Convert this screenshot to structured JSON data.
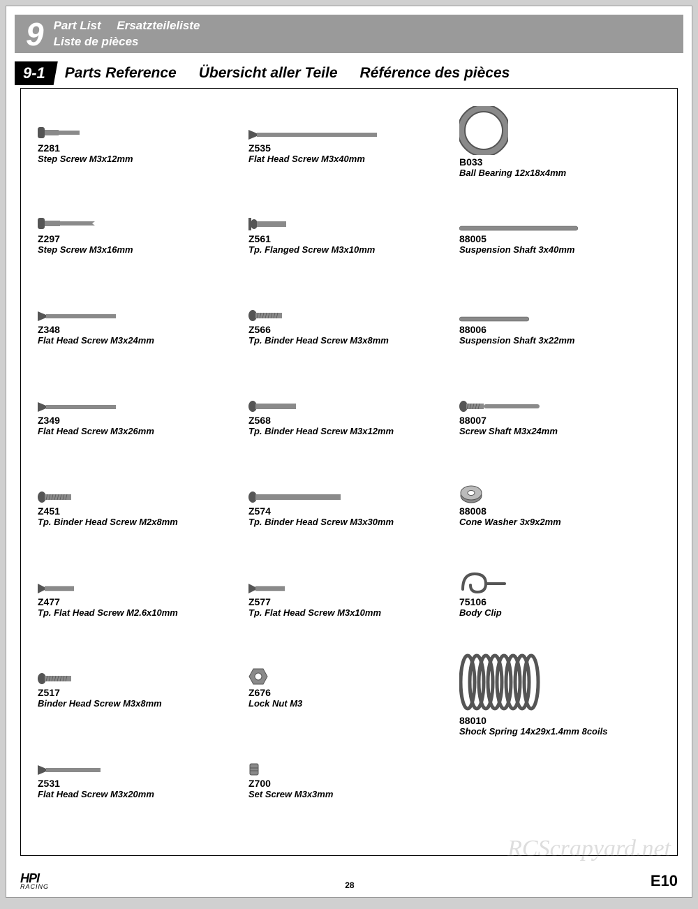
{
  "header": {
    "section_number": "9",
    "title_en": "Part List",
    "title_de": "Ersatzteileliste",
    "title_fr": "Liste de pièces"
  },
  "subheader": {
    "section_number": "9-1",
    "title_en": "Parts  Reference",
    "title_de": "Übersicht  aller  Teile",
    "title_fr": "Référence  des  pièces"
  },
  "columns": [
    [
      {
        "code": "Z281",
        "desc": "Step Screw M3x12mm",
        "icon": "step-screw-short"
      },
      {
        "code": "Z297",
        "desc": "Step Screw M3x16mm",
        "icon": "step-screw-long"
      },
      {
        "code": "Z348",
        "desc": "Flat Head Screw M3x24mm",
        "icon": "flat-screw-long"
      },
      {
        "code": "Z349",
        "desc": "Flat Head Screw M3x26mm",
        "icon": "flat-screw-long"
      },
      {
        "code": "Z451",
        "desc": "Tp. Binder Head Screw M2x8mm",
        "icon": "binder-screw-short"
      },
      {
        "code": "Z477",
        "desc": "Tp. Flat Head Screw M2.6x10mm",
        "icon": "flat-screw-short"
      },
      {
        "code": "Z517",
        "desc": "Binder Head Screw M3x8mm",
        "icon": "binder-screw-short"
      },
      {
        "code": "Z531",
        "desc": "Flat Head Screw M3x20mm",
        "icon": "flat-screw-med"
      }
    ],
    [
      {
        "code": "Z535",
        "desc": "Flat Head Screw M3x40mm",
        "icon": "flat-screw-xlong"
      },
      {
        "code": "Z561",
        "desc": "Tp. Flanged Screw M3x10mm",
        "icon": "flanged-screw"
      },
      {
        "code": "Z566",
        "desc": "Tp. Binder Head Screw M3x8mm",
        "icon": "binder-screw-short"
      },
      {
        "code": "Z568",
        "desc": "Tp. Binder Head Screw M3x12mm",
        "icon": "binder-screw-med"
      },
      {
        "code": "Z574",
        "desc": "Tp. Binder Head Screw M3x30mm",
        "icon": "binder-screw-long"
      },
      {
        "code": "Z577",
        "desc": "Tp. Flat Head Screw M3x10mm",
        "icon": "flat-screw-short"
      },
      {
        "code": "Z676",
        "desc": "Lock Nut M3",
        "icon": "nut"
      },
      {
        "code": "Z700",
        "desc": "Set Screw M3x3mm",
        "icon": "set-screw"
      }
    ],
    [
      {
        "code": "B033",
        "desc": "Ball Bearing 12x18x4mm",
        "icon": "bearing"
      },
      {
        "code": "88005",
        "desc": "Suspension Shaft 3x40mm",
        "icon": "shaft-long"
      },
      {
        "code": "88006",
        "desc": "Suspension Shaft 3x22mm",
        "icon": "shaft-short"
      },
      {
        "code": "88007",
        "desc": "Screw Shaft M3x24mm",
        "icon": "screw-shaft"
      },
      {
        "code": "88008",
        "desc": "Cone Washer 3x9x2mm",
        "icon": "washer"
      },
      {
        "code": "75106",
        "desc": "Body Clip",
        "icon": "clip"
      },
      {
        "code": "88010",
        "desc": "Shock Spring 14x29x1.4mm 8coils",
        "icon": "spring"
      }
    ]
  ],
  "footer": {
    "brand": "HPI",
    "brand_sub": "RACING",
    "page": "28",
    "model": "E10"
  },
  "watermark": "RCScrapyard.net",
  "colors": {
    "header_bg": "#9a9a9a",
    "page_bg": "#ffffff",
    "outer_bg": "#d0d0d0",
    "part_metal": "#8a8a8a",
    "part_metal_dark": "#555555"
  }
}
